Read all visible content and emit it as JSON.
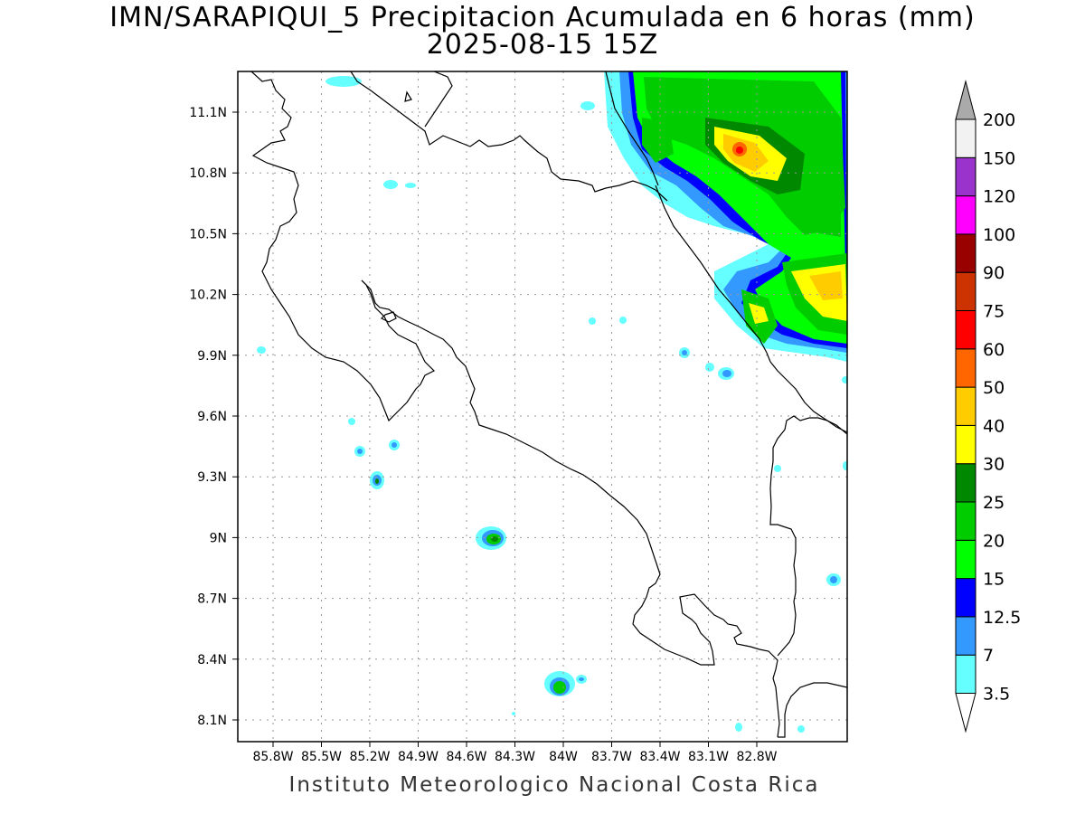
{
  "title_line1": "IMN/SARAPIQUI_5 Precipitacion Acumulada en 6 horas (mm)",
  "title_line2": "2025-08-15 15Z",
  "footer": "Instituto Meteorologico Nacional Costa Rica",
  "map": {
    "lon_ticks": [
      "85.8W",
      "85.5W",
      "85.2W",
      "84.9W",
      "84.6W",
      "84.3W",
      "84W",
      "83.7W",
      "83.4W",
      "83.1W",
      "82.8W"
    ],
    "lat_ticks": [
      "11.1N",
      "10.8N",
      "10.5N",
      "10.2N",
      "9.9N",
      "9.6N",
      "9.3N",
      "9N",
      "8.7N",
      "8.4N",
      "8.1N"
    ],
    "grid": true
  },
  "colorbar": {
    "levels": [
      "3.5",
      "7",
      "12.5",
      "15",
      "20",
      "25",
      "30",
      "40",
      "50",
      "60",
      "75",
      "90",
      "100",
      "120",
      "150",
      "200"
    ],
    "colors": [
      "#ffffff",
      "#66ffff",
      "#3399ff",
      "#0000ff",
      "#00ff00",
      "#00cc00",
      "#008800",
      "#ffff00",
      "#ffcc00",
      "#ff6600",
      "#ff0000",
      "#cc3300",
      "#990000",
      "#ff00ff",
      "#9933cc",
      "#f2f2f2",
      "#aaaaaa"
    ]
  }
}
